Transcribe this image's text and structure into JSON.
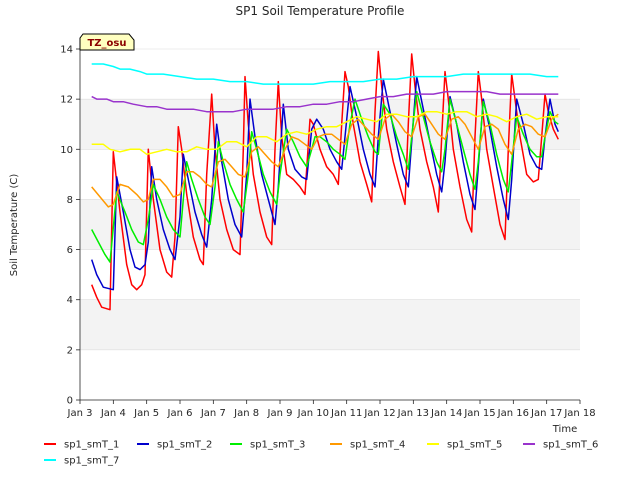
{
  "chart_data": {
    "type": "line",
    "title": "SP1 Soil Temperature Profile",
    "xlabel": "Time",
    "ylabel": "Soil Temperature (C)",
    "site_badge": "TZ_osu",
    "xlim": [
      3,
      18
    ],
    "ylim": [
      0,
      14
    ],
    "x_ticks": [
      3,
      4,
      5,
      6,
      7,
      8,
      9,
      10,
      11,
      12,
      13,
      14,
      15,
      16,
      17,
      18
    ],
    "x_tick_labels": [
      "Jan 3",
      "Jan 4",
      "Jan 5",
      "Jan 6",
      "Jan 7",
      "Jan 8",
      "Jan 9",
      "Jan 10",
      "Jan 11",
      "Jan 12",
      "Jan 13",
      "Jan 14",
      "Jan 15",
      "Jan 16",
      "Jan 17",
      "Jan 18"
    ],
    "y_ticks": [
      0,
      2,
      4,
      6,
      8,
      10,
      12,
      14
    ],
    "y_tick_labels": [
      "0",
      "2",
      "4",
      "6",
      "8",
      "10",
      "12",
      "14"
    ],
    "grid_bands": true,
    "legend_position": "bottom",
    "series": [
      {
        "name": "sp1_smT_1",
        "color": "#ff0000",
        "x": [
          3.35,
          3.5,
          3.65,
          3.9,
          4.0,
          4.2,
          4.4,
          4.55,
          4.7,
          4.85,
          4.95,
          5.05,
          5.2,
          5.4,
          5.6,
          5.75,
          5.85,
          5.95,
          6.05,
          6.2,
          6.4,
          6.6,
          6.7,
          6.8,
          6.95,
          7.05,
          7.2,
          7.4,
          7.6,
          7.8,
          7.9,
          7.95,
          8.05,
          8.2,
          8.4,
          8.6,
          8.75,
          8.85,
          8.95,
          9.05,
          9.2,
          9.4,
          9.6,
          9.75,
          9.9,
          10.0,
          10.2,
          10.4,
          10.6,
          10.75,
          10.85,
          10.95,
          11.05,
          11.2,
          11.4,
          11.6,
          11.75,
          11.85,
          11.95,
          12.05,
          12.2,
          12.4,
          12.6,
          12.75,
          12.85,
          12.95,
          13.05,
          13.2,
          13.4,
          13.6,
          13.75,
          13.85,
          13.95,
          14.05,
          14.2,
          14.4,
          14.6,
          14.75,
          14.85,
          14.95,
          15.05,
          15.2,
          15.4,
          15.6,
          15.75,
          15.85,
          15.95,
          16.05,
          16.2,
          16.4,
          16.6,
          16.75,
          16.85,
          16.95,
          17.05,
          17.2,
          17.35
        ],
        "y": [
          4.6,
          4.1,
          3.7,
          3.6,
          9.9,
          7.5,
          5.4,
          4.6,
          4.4,
          4.6,
          5.0,
          10.0,
          8.0,
          6.0,
          5.1,
          4.9,
          6.5,
          10.9,
          10.0,
          8.2,
          6.5,
          5.6,
          5.4,
          9.0,
          12.2,
          10.0,
          8.0,
          6.8,
          6.0,
          5.8,
          10.0,
          12.9,
          11.0,
          9.0,
          7.5,
          6.5,
          6.2,
          10.0,
          12.7,
          10.5,
          9.0,
          8.8,
          8.5,
          8.2,
          11.2,
          11.0,
          10.0,
          9.3,
          9.0,
          8.6,
          11.0,
          13.1,
          12.5,
          11.0,
          9.5,
          8.6,
          7.9,
          11.5,
          13.9,
          12.5,
          10.8,
          9.5,
          8.5,
          7.8,
          11.0,
          13.8,
          12.5,
          10.8,
          9.5,
          8.5,
          7.5,
          10.5,
          13.1,
          12.0,
          10.0,
          8.5,
          7.2,
          6.7,
          10.5,
          13.1,
          12.0,
          10.0,
          8.5,
          7.0,
          6.4,
          10.0,
          13.0,
          12.0,
          10.5,
          9.0,
          8.7,
          8.8,
          10.5,
          12.2,
          11.5,
          10.8,
          10.4
        ]
      },
      {
        "name": "sp1_smT_2",
        "color": "#0000cc",
        "x": [
          3.35,
          3.5,
          3.7,
          4.0,
          4.1,
          4.3,
          4.5,
          4.65,
          4.8,
          4.95,
          5.05,
          5.15,
          5.3,
          5.5,
          5.7,
          5.85,
          6.0,
          6.1,
          6.25,
          6.45,
          6.65,
          6.8,
          6.95,
          7.1,
          7.25,
          7.45,
          7.65,
          7.85,
          8.0,
          8.1,
          8.25,
          8.45,
          8.65,
          8.85,
          8.95,
          9.1,
          9.25,
          9.45,
          9.65,
          9.8,
          9.95,
          10.1,
          10.3,
          10.5,
          10.7,
          10.85,
          10.95,
          11.1,
          11.3,
          11.5,
          11.7,
          11.85,
          11.95,
          12.1,
          12.3,
          12.5,
          12.7,
          12.85,
          12.95,
          13.1,
          13.3,
          13.5,
          13.7,
          13.85,
          13.95,
          14.1,
          14.3,
          14.5,
          14.7,
          14.85,
          14.95,
          15.1,
          15.3,
          15.5,
          15.7,
          15.85,
          15.95,
          16.1,
          16.3,
          16.5,
          16.7,
          16.85,
          16.95,
          17.1,
          17.25,
          17.35
        ],
        "y": [
          5.6,
          5.0,
          4.5,
          4.4,
          8.9,
          7.5,
          6.0,
          5.3,
          5.2,
          5.4,
          6.3,
          9.3,
          8.0,
          6.8,
          6.0,
          5.6,
          7.3,
          9.8,
          8.8,
          7.5,
          6.6,
          6.1,
          8.0,
          11.0,
          9.5,
          8.0,
          7.0,
          6.5,
          9.0,
          12.0,
          10.5,
          9.0,
          8.0,
          7.0,
          8.5,
          11.8,
          10.0,
          9.2,
          8.9,
          8.8,
          10.8,
          11.2,
          10.8,
          10.0,
          9.5,
          9.2,
          10.5,
          12.5,
          11.3,
          10.0,
          9.0,
          8.5,
          10.5,
          12.8,
          11.5,
          10.2,
          9.0,
          8.5,
          10.3,
          12.9,
          11.6,
          10.3,
          9.0,
          8.3,
          9.5,
          12.1,
          11.0,
          9.5,
          8.2,
          7.6,
          9.3,
          12.0,
          10.8,
          9.3,
          8.0,
          7.2,
          8.8,
          12.0,
          11.0,
          9.8,
          9.3,
          9.2,
          10.5,
          12.0,
          11.0,
          10.7
        ]
      },
      {
        "name": "sp1_smT_3",
        "color": "#00ee00",
        "x": [
          3.35,
          3.55,
          3.75,
          3.9,
          4.1,
          4.35,
          4.55,
          4.75,
          4.9,
          5.05,
          5.2,
          5.4,
          5.6,
          5.8,
          6.0,
          6.1,
          6.2,
          6.35,
          6.55,
          6.75,
          6.9,
          7.05,
          7.15,
          7.3,
          7.5,
          7.7,
          7.9,
          8.05,
          8.15,
          8.3,
          8.5,
          8.7,
          8.9,
          9.0,
          9.2,
          9.4,
          9.6,
          9.8,
          9.95,
          10.05,
          10.2,
          10.4,
          10.6,
          10.8,
          10.95,
          11.1,
          11.25,
          11.45,
          11.65,
          11.85,
          11.95,
          12.1,
          12.3,
          12.5,
          12.7,
          12.85,
          12.95,
          13.1,
          13.3,
          13.5,
          13.7,
          13.85,
          13.95,
          14.1,
          14.3,
          14.5,
          14.7,
          14.85,
          14.95,
          15.1,
          15.3,
          15.5,
          15.7,
          15.85,
          15.95,
          16.1,
          16.3,
          16.5,
          16.7,
          16.85,
          16.95,
          17.1,
          17.25,
          17.35
        ],
        "y": [
          6.8,
          6.3,
          5.8,
          5.5,
          8.3,
          7.5,
          6.8,
          6.3,
          6.2,
          7.2,
          8.6,
          8.0,
          7.3,
          6.8,
          6.5,
          8.0,
          9.5,
          8.8,
          8.0,
          7.3,
          7.0,
          8.5,
          10.3,
          9.5,
          8.6,
          8.0,
          7.5,
          9.0,
          10.7,
          10.0,
          9.0,
          8.3,
          7.8,
          9.0,
          10.8,
          10.3,
          9.7,
          9.3,
          10.0,
          10.5,
          10.5,
          10.3,
          10.0,
          9.8,
          9.6,
          11.0,
          12.0,
          11.2,
          10.5,
          9.9,
          9.8,
          11.8,
          11.4,
          10.5,
          9.8,
          9.2,
          10.5,
          12.3,
          11.3,
          10.3,
          9.5,
          9.1,
          10.0,
          12.0,
          11.0,
          10.0,
          9.0,
          8.4,
          9.5,
          11.9,
          11.0,
          9.8,
          8.8,
          8.3,
          9.5,
          11.3,
          10.6,
          10.0,
          9.7,
          9.7,
          10.5,
          11.5,
          11.1,
          11.0
        ]
      },
      {
        "name": "sp1_smT_4",
        "color": "#ff9900",
        "x": [
          3.35,
          3.6,
          3.85,
          4.0,
          4.2,
          4.45,
          4.7,
          4.9,
          5.05,
          5.2,
          5.4,
          5.6,
          5.8,
          6.0,
          6.2,
          6.4,
          6.6,
          6.8,
          6.95,
          7.15,
          7.35,
          7.55,
          7.75,
          7.95,
          8.15,
          8.35,
          8.55,
          8.75,
          8.95,
          9.15,
          9.35,
          9.55,
          9.75,
          9.95,
          10.15,
          10.35,
          10.55,
          10.75,
          10.95,
          11.15,
          11.35,
          11.55,
          11.75,
          11.95,
          12.15,
          12.35,
          12.55,
          12.75,
          12.95,
          13.15,
          13.35,
          13.55,
          13.75,
          13.95,
          14.15,
          14.35,
          14.55,
          14.75,
          14.95,
          15.15,
          15.35,
          15.55,
          15.75,
          15.95,
          16.15,
          16.35,
          16.55,
          16.75,
          16.95,
          17.15,
          17.35
        ],
        "y": [
          8.5,
          8.1,
          7.7,
          7.8,
          8.6,
          8.5,
          8.2,
          7.9,
          8.0,
          8.8,
          8.8,
          8.5,
          8.1,
          8.2,
          9.1,
          9.1,
          8.9,
          8.6,
          8.5,
          9.5,
          9.6,
          9.3,
          9.0,
          8.9,
          9.9,
          10.1,
          9.8,
          9.5,
          9.3,
          10.0,
          10.5,
          10.4,
          10.2,
          10.0,
          10.5,
          10.6,
          10.6,
          10.4,
          10.2,
          11.0,
          11.2,
          10.9,
          10.6,
          10.4,
          11.2,
          11.4,
          11.1,
          10.7,
          10.5,
          11.3,
          11.4,
          11.0,
          10.6,
          10.4,
          11.2,
          11.3,
          11.0,
          10.5,
          10.0,
          10.9,
          11.0,
          10.8,
          10.2,
          9.8,
          10.8,
          11.0,
          10.9,
          10.6,
          10.5,
          11.2,
          11.4
        ]
      },
      {
        "name": "sp1_smT_5",
        "color": "#ffff00",
        "x": [
          3.35,
          3.7,
          3.9,
          4.2,
          4.5,
          4.8,
          5.0,
          5.3,
          5.6,
          5.9,
          6.2,
          6.5,
          6.8,
          7.1,
          7.4,
          7.7,
          8.0,
          8.3,
          8.6,
          8.9,
          9.2,
          9.5,
          9.8,
          10.1,
          10.4,
          10.7,
          11.0,
          11.3,
          11.6,
          11.9,
          12.2,
          12.5,
          12.8,
          13.1,
          13.4,
          13.7,
          14.0,
          14.3,
          14.6,
          14.9,
          15.2,
          15.5,
          15.8,
          16.1,
          16.4,
          16.7,
          17.0,
          17.35
        ],
        "y": [
          10.2,
          10.2,
          10.0,
          9.9,
          10.0,
          10.0,
          9.8,
          9.9,
          10.0,
          9.9,
          9.9,
          10.1,
          10.0,
          10.0,
          10.3,
          10.3,
          10.1,
          10.5,
          10.5,
          10.3,
          10.6,
          10.7,
          10.6,
          10.8,
          10.9,
          10.9,
          11.1,
          11.3,
          11.2,
          11.1,
          11.4,
          11.4,
          11.3,
          11.3,
          11.5,
          11.5,
          11.4,
          11.5,
          11.5,
          11.3,
          11.4,
          11.3,
          11.1,
          11.3,
          11.4,
          11.2,
          11.3,
          11.3
        ]
      },
      {
        "name": "sp1_smT_6",
        "color": "#9933cc",
        "x": [
          3.35,
          3.5,
          3.8,
          4.0,
          4.3,
          4.6,
          5.0,
          5.3,
          5.6,
          6.0,
          6.4,
          6.8,
          7.2,
          7.6,
          8.0,
          8.4,
          8.8,
          9.2,
          9.6,
          10.0,
          10.4,
          10.8,
          11.2,
          11.6,
          12.0,
          12.4,
          12.8,
          13.2,
          13.6,
          14.0,
          14.4,
          14.8,
          15.2,
          15.6,
          16.0,
          16.4,
          16.8,
          17.35
        ],
        "y": [
          12.1,
          12.0,
          12.0,
          11.9,
          11.9,
          11.8,
          11.7,
          11.7,
          11.6,
          11.6,
          11.6,
          11.5,
          11.5,
          11.5,
          11.6,
          11.6,
          11.6,
          11.7,
          11.7,
          11.8,
          11.8,
          11.9,
          11.9,
          12.0,
          12.1,
          12.1,
          12.2,
          12.2,
          12.2,
          12.3,
          12.3,
          12.3,
          12.3,
          12.2,
          12.2,
          12.2,
          12.2,
          12.2
        ]
      },
      {
        "name": "sp1_smT_7",
        "color": "#00ffff",
        "x": [
          3.35,
          3.7,
          4.0,
          4.2,
          4.5,
          4.8,
          5.0,
          5.5,
          6.0,
          6.5,
          7.0,
          7.5,
          8.0,
          8.5,
          9.0,
          9.5,
          10.0,
          10.5,
          11.0,
          11.5,
          12.0,
          12.5,
          13.0,
          13.5,
          14.0,
          14.5,
          15.0,
          15.5,
          16.0,
          16.5,
          17.0,
          17.35
        ],
        "y": [
          13.4,
          13.4,
          13.3,
          13.2,
          13.2,
          13.1,
          13.0,
          13.0,
          12.9,
          12.8,
          12.8,
          12.7,
          12.7,
          12.6,
          12.6,
          12.6,
          12.6,
          12.7,
          12.7,
          12.7,
          12.8,
          12.8,
          12.9,
          12.9,
          12.9,
          13.0,
          13.0,
          13.0,
          13.0,
          13.0,
          12.9,
          12.9
        ]
      }
    ]
  }
}
